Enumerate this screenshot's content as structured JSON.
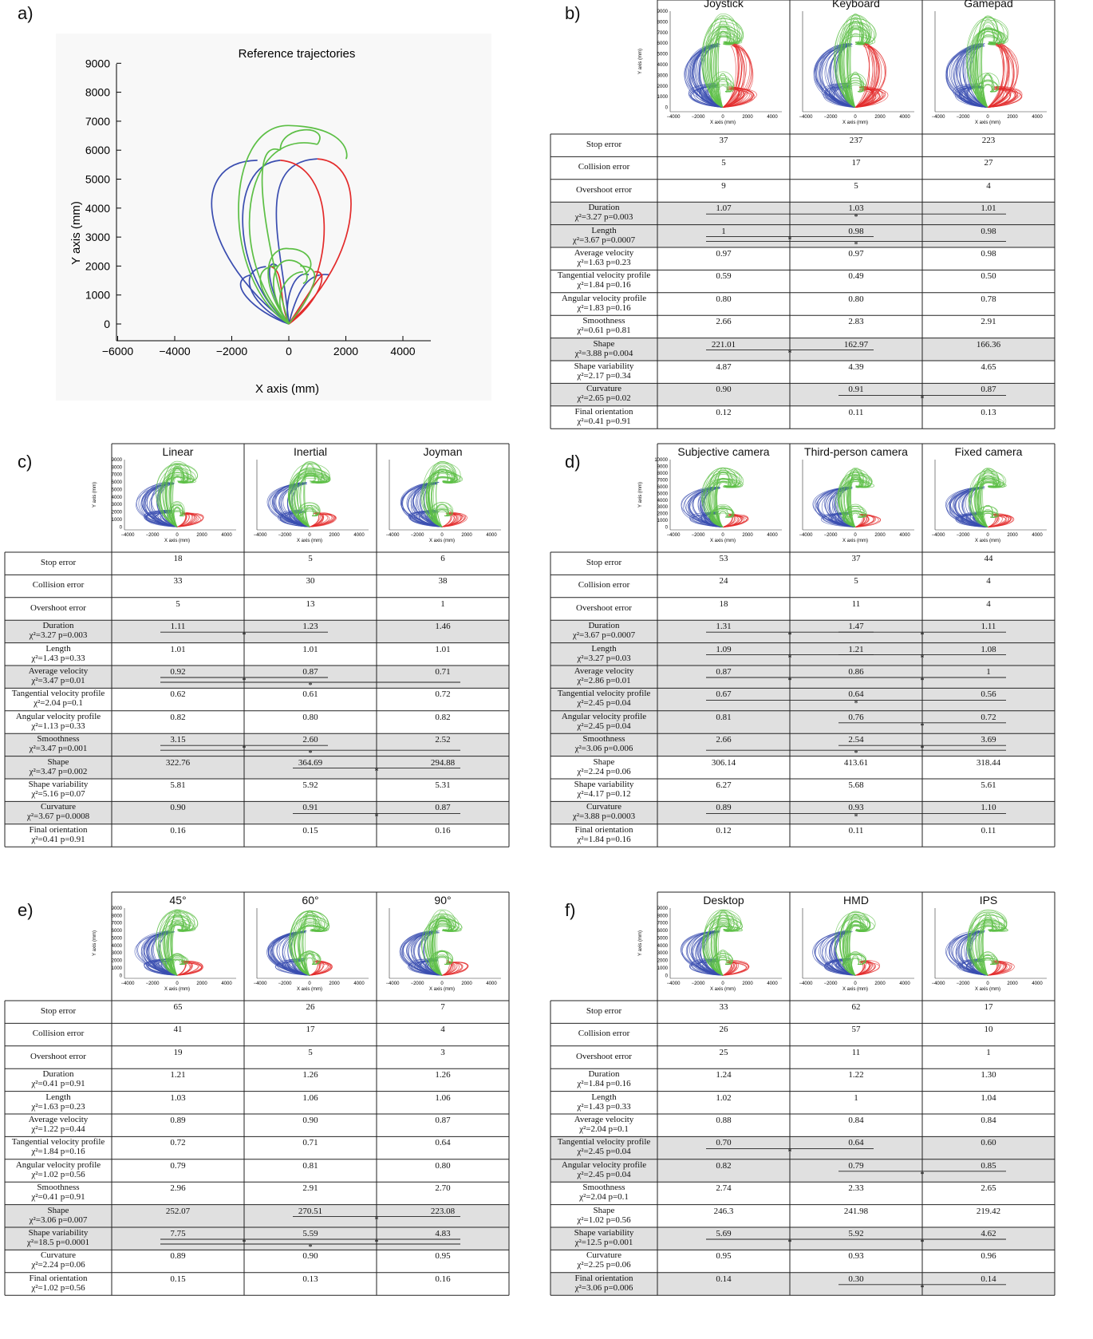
{
  "panels": [
    {
      "letter": "a)"
    },
    {
      "letter": "b)"
    },
    {
      "letter": "c)"
    },
    {
      "letter": "d)"
    },
    {
      "letter": "e)"
    },
    {
      "letter": "f)"
    }
  ],
  "colors": {
    "blue": "#3a4db0",
    "red": "#e32b2b",
    "green": "#5cbf45",
    "shade": "#e0e0e0",
    "grid": "#222222"
  },
  "reference": {
    "title": "Reference trajectories",
    "xlabel": "X axis (mm)",
    "ylabel": "Y axis (mm)",
    "xticks": [
      "−6000",
      "−4000",
      "−2000",
      "0",
      "2000",
      "4000"
    ],
    "yticks": [
      "0",
      "1000",
      "2000",
      "3000",
      "4000",
      "5000",
      "6000",
      "7000",
      "8000",
      "9000"
    ]
  },
  "thumb": {
    "xlabel": "X axis (mm)",
    "ylabel": "Y axis (mm)",
    "xticks": [
      "−4000",
      "−2000",
      "0",
      "2000",
      "4000"
    ],
    "yticks": [
      "0",
      "1000",
      "2000",
      "3000",
      "4000",
      "5000",
      "6000",
      "7000",
      "8000",
      "9000"
    ],
    "yticks_d": [
      "0",
      "1000",
      "2000",
      "3000",
      "4000",
      "5000",
      "6000",
      "7000",
      "8000",
      "9000",
      "10000"
    ]
  },
  "rowLabels": {
    "stop": "Stop error",
    "collision": "Collision error",
    "overshoot": "Overshoot error",
    "duration": "Duration",
    "length": "Length",
    "avgvel": "Average velocity",
    "tanvel": "Tangential velocity profile",
    "angvel": "Angular velocity profile",
    "smooth": "Smoothness",
    "shape": "Shape",
    "shapevar": "Shape variability",
    "curv": "Curvature",
    "orient": "Final orientation"
  },
  "tables": [
    {
      "id": "b",
      "cols": [
        "Joystick",
        "Keyboard",
        "Gamepad"
      ],
      "rows": [
        {
          "key": "stop",
          "vals": [
            "37",
            "237",
            "223"
          ]
        },
        {
          "key": "collision",
          "vals": [
            "5",
            "17",
            "27"
          ]
        },
        {
          "key": "overshoot",
          "vals": [
            "9",
            "5",
            "4"
          ]
        },
        {
          "key": "duration",
          "stat": "χ²=3.27  p=0.003",
          "vals": [
            "1.07",
            "1.03",
            "1.01"
          ],
          "shade": true
        },
        {
          "key": "length",
          "stat": "χ²=3.67  p=0.0007",
          "vals": [
            "1",
            "0.98",
            "0.98"
          ],
          "shade": true
        },
        {
          "key": "avgvel",
          "stat": "χ²=1.63  p=0.23",
          "vals": [
            "0.97",
            "0.97",
            "0.98"
          ]
        },
        {
          "key": "tanvel",
          "stat": "χ²=1.84  p=0.16",
          "vals": [
            "0.59",
            "0.49",
            "0.50"
          ]
        },
        {
          "key": "angvel",
          "stat": "χ²=1.83  p=0.16",
          "vals": [
            "0.80",
            "0.80",
            "0.78"
          ]
        },
        {
          "key": "smooth",
          "stat": "χ²=0.61  p=0.81",
          "vals": [
            "2.66",
            "2.83",
            "2.91"
          ]
        },
        {
          "key": "shape",
          "stat": "χ²=3.88  p=0.004",
          "vals": [
            "221.01",
            "162.97",
            "166.36"
          ],
          "shade": true
        },
        {
          "key": "shapevar",
          "stat": "χ²=2.17  p=0.34",
          "vals": [
            "4.87",
            "4.39",
            "4.65"
          ]
        },
        {
          "key": "curv",
          "stat": "χ²=2.65  p=0.02",
          "vals": [
            "0.90",
            "0.91",
            "0.87"
          ],
          "shade": true
        },
        {
          "key": "orient",
          "stat": "χ²=0.41  p=0.91",
          "vals": [
            "0.12",
            "0.11",
            "0.13"
          ]
        }
      ]
    },
    {
      "id": "c",
      "cols": [
        "Linear",
        "Inertial",
        "Joyman"
      ],
      "rows": [
        {
          "key": "stop",
          "vals": [
            "18",
            "5",
            "6"
          ]
        },
        {
          "key": "collision",
          "vals": [
            "33",
            "30",
            "38"
          ]
        },
        {
          "key": "overshoot",
          "vals": [
            "5",
            "13",
            "1"
          ]
        },
        {
          "key": "duration",
          "stat": "χ²=3.27  p=0.003",
          "vals": [
            "1.11",
            "1.23",
            "1.46"
          ],
          "shade": true
        },
        {
          "key": "length",
          "stat": "χ²=1.43  p=0.33",
          "vals": [
            "1.01",
            "1.01",
            "1.01"
          ]
        },
        {
          "key": "avgvel",
          "stat": "χ²=3.47  p=0.01",
          "vals": [
            "0.92",
            "0.87",
            "0.71"
          ],
          "shade": true
        },
        {
          "key": "tanvel",
          "stat": "χ²=2.04  p=0.1",
          "vals": [
            "0.62",
            "0.61",
            "0.72"
          ]
        },
        {
          "key": "angvel",
          "stat": "χ²=1.13  p=0.33",
          "vals": [
            "0.82",
            "0.80",
            "0.82"
          ]
        },
        {
          "key": "smooth",
          "stat": "χ²=3.47  p=0.001",
          "vals": [
            "3.15",
            "2.60",
            "2.52"
          ],
          "shade": true
        },
        {
          "key": "shape",
          "stat": "χ²=3.47  p=0.002",
          "vals": [
            "322.76",
            "364.69",
            "294.88"
          ],
          "shade": true
        },
        {
          "key": "shapevar",
          "stat": "χ²=5.16  p=0.07",
          "vals": [
            "5.81",
            "5.92",
            "5.31"
          ]
        },
        {
          "key": "curv",
          "stat": "χ²=3.67  p=0.0008",
          "vals": [
            "0.90",
            "0.91",
            "0.87"
          ],
          "shade": true
        },
        {
          "key": "orient",
          "stat": "χ²=0.41  p=0.91",
          "vals": [
            "0.16",
            "0.15",
            "0.16"
          ]
        }
      ]
    },
    {
      "id": "d",
      "cols": [
        "Subjective camera",
        "Third-person camera",
        "Fixed camera"
      ],
      "rows": [
        {
          "key": "stop",
          "vals": [
            "53",
            "37",
            "44"
          ]
        },
        {
          "key": "collision",
          "vals": [
            "24",
            "5",
            "4"
          ]
        },
        {
          "key": "overshoot",
          "vals": [
            "18",
            "11",
            "4"
          ]
        },
        {
          "key": "duration",
          "stat": "χ²=3.67  p=0.0007",
          "vals": [
            "1.31",
            "1.47",
            "1.11"
          ],
          "shade": true
        },
        {
          "key": "length",
          "stat": "χ²=3.27  p=0.03",
          "vals": [
            "1.09",
            "1.21",
            "1.08"
          ],
          "shade": true
        },
        {
          "key": "avgvel",
          "stat": "χ²=2.86  p=0.01",
          "vals": [
            "0.87",
            "0.86",
            "1"
          ],
          "shade": true
        },
        {
          "key": "tanvel",
          "stat": "χ²=2.45  p=0.04",
          "vals": [
            "0.67",
            "0.64",
            "0.56"
          ],
          "shade": true
        },
        {
          "key": "angvel",
          "stat": "χ²=2.45  p=0.04",
          "vals": [
            "0.81",
            "0.76",
            "0.72"
          ],
          "shade": true
        },
        {
          "key": "smooth",
          "stat": "χ²=3.06  p=0.006",
          "vals": [
            "2.66",
            "2.54",
            "3.69"
          ],
          "shade": true
        },
        {
          "key": "shape",
          "stat": "χ²=2.24  p=0.06",
          "vals": [
            "306.14",
            "413.61",
            "318.44"
          ]
        },
        {
          "key": "shapevar",
          "stat": "χ²=4.17  p=0.12",
          "vals": [
            "6.27",
            "5.68",
            "5.61"
          ]
        },
        {
          "key": "curv",
          "stat": "χ²=3.88  p=0.0003",
          "vals": [
            "0.89",
            "0.93",
            "1.10"
          ],
          "shade": true
        },
        {
          "key": "orient",
          "stat": "χ²=1.84  p=0.16",
          "vals": [
            "0.12",
            "0.11",
            "0.11"
          ]
        }
      ]
    },
    {
      "id": "e",
      "cols": [
        "45°",
        "60°",
        "90°"
      ],
      "rows": [
        {
          "key": "stop",
          "vals": [
            "65",
            "26",
            "7"
          ]
        },
        {
          "key": "collision",
          "vals": [
            "41",
            "17",
            "4"
          ]
        },
        {
          "key": "overshoot",
          "vals": [
            "19",
            "5",
            "3"
          ]
        },
        {
          "key": "duration",
          "stat": "χ²=0.41  p=0.91",
          "vals": [
            "1.21",
            "1.26",
            "1.26"
          ]
        },
        {
          "key": "length",
          "stat": "χ²=1.63  p=0.23",
          "vals": [
            "1.03",
            "1.06",
            "1.06"
          ]
        },
        {
          "key": "avgvel",
          "stat": "χ²=1.22  p=0.44",
          "vals": [
            "0.89",
            "0.90",
            "0.87"
          ]
        },
        {
          "key": "tanvel",
          "stat": "χ²=1.84  p=0.16",
          "vals": [
            "0.72",
            "0.71",
            "0.64"
          ]
        },
        {
          "key": "angvel",
          "stat": "χ²=1.02  p=0.56",
          "vals": [
            "0.79",
            "0.81",
            "0.80"
          ]
        },
        {
          "key": "smooth",
          "stat": "χ²=0.41  p=0.91",
          "vals": [
            "2.96",
            "2.91",
            "2.70"
          ]
        },
        {
          "key": "shape",
          "stat": "χ²=3.06  p=0.007",
          "vals": [
            "252.07",
            "270.51",
            "223.08"
          ],
          "shade": true
        },
        {
          "key": "shapevar",
          "stat": "χ²=18.5  p=0.0001",
          "vals": [
            "7.75",
            "5.59",
            "4.83"
          ],
          "shade": true
        },
        {
          "key": "curv",
          "stat": "χ²=2.24  p=0.06",
          "vals": [
            "0.89",
            "0.90",
            "0.95"
          ]
        },
        {
          "key": "orient",
          "stat": "χ²=1.02  p=0.56",
          "vals": [
            "0.15",
            "0.13",
            "0.16"
          ]
        }
      ]
    },
    {
      "id": "f",
      "cols": [
        "Desktop",
        "HMD",
        "IPS"
      ],
      "rows": [
        {
          "key": "stop",
          "vals": [
            "33",
            "62",
            "17"
          ]
        },
        {
          "key": "collision",
          "vals": [
            "26",
            "57",
            "10"
          ]
        },
        {
          "key": "overshoot",
          "vals": [
            "25",
            "11",
            "1"
          ]
        },
        {
          "key": "duration",
          "stat": "χ²=1.84  p=0.16",
          "vals": [
            "1.24",
            "1.22",
            "1.30"
          ]
        },
        {
          "key": "length",
          "stat": "χ²=1.43  p=0.33",
          "vals": [
            "1.02",
            "1",
            "1.04"
          ]
        },
        {
          "key": "avgvel",
          "stat": "χ²=2.04  p=0.1",
          "vals": [
            "0.88",
            "0.84",
            "0.84"
          ]
        },
        {
          "key": "tanvel",
          "stat": "χ²=2.45  p=0.04",
          "vals": [
            "0.70",
            "0.64",
            "0.60"
          ],
          "shade": true
        },
        {
          "key": "angvel",
          "stat": "χ²=2.45  p=0.04",
          "vals": [
            "0.82",
            "0.79",
            "0.85"
          ],
          "shade": true
        },
        {
          "key": "smooth",
          "stat": "χ²=2.04  p=0.1",
          "vals": [
            "2.74",
            "2.33",
            "2.65"
          ]
        },
        {
          "key": "shape",
          "stat": "χ²=1.02  p=0.56",
          "vals": [
            "246.3",
            "241.98",
            "219.42"
          ]
        },
        {
          "key": "shapevar",
          "stat": "χ²=12.5  p=0.001",
          "vals": [
            "5.69",
            "5.92",
            "4.62"
          ],
          "shade": true
        },
        {
          "key": "curv",
          "stat": "χ²=2.25  p=0.06",
          "vals": [
            "0.95",
            "0.93",
            "0.96"
          ]
        },
        {
          "key": "orient",
          "stat": "χ²=3.06  p=0.006",
          "vals": [
            "0.14",
            "0.30",
            "0.14"
          ],
          "shade": true
        }
      ]
    }
  ],
  "chart_data": [
    {
      "type": "line",
      "title": "Reference trajectories",
      "xlabel": "X axis (mm)",
      "ylabel": "Y axis (mm)",
      "xlim": [
        -6000,
        5000
      ],
      "ylim": [
        -500,
        9000
      ],
      "grid": false,
      "series_colors": {
        "left_targets": "#3a4db0",
        "right_targets": "#e32b2b",
        "forward_targets": "#5cbf45"
      }
    },
    {
      "type": "table",
      "panel": "b"
    },
    {
      "type": "table",
      "panel": "c"
    },
    {
      "type": "table",
      "panel": "d"
    },
    {
      "type": "table",
      "panel": "e"
    },
    {
      "type": "table",
      "panel": "f"
    }
  ]
}
